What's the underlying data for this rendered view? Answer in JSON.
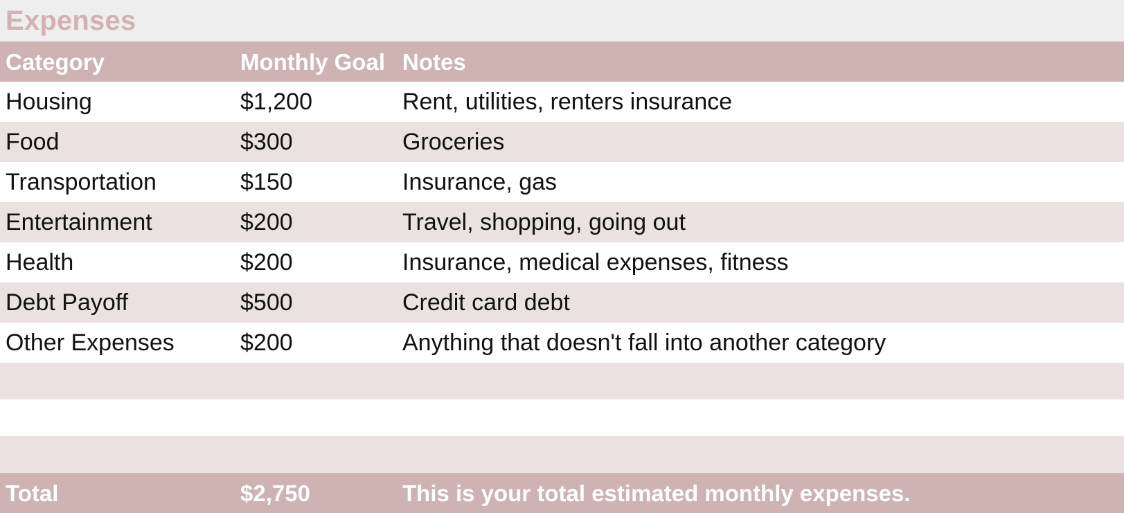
{
  "title": "Expenses",
  "headers": {
    "category": "Category",
    "goal": "Monthly Goal",
    "notes": "Notes"
  },
  "rows": [
    {
      "category": "Housing",
      "goal": "$1,200",
      "notes": "Rent, utilities, renters insurance"
    },
    {
      "category": "Food",
      "goal": "$300",
      "notes": "Groceries"
    },
    {
      "category": "Transportation",
      "goal": "$150",
      "notes": "Insurance, gas"
    },
    {
      "category": "Entertainment",
      "goal": "$200",
      "notes": "Travel, shopping, going out"
    },
    {
      "category": "Health",
      "goal": "$200",
      "notes": "Insurance, medical expenses, fitness"
    },
    {
      "category": "Debt Payoff",
      "goal": "$500",
      "notes": "Credit card debt"
    },
    {
      "category": "Other Expenses",
      "goal": "$200",
      "notes": "Anything that doesn't fall into another category"
    }
  ],
  "total": {
    "label": "Total",
    "goal": "$2,750",
    "notes": "This is your total estimated monthly expenses."
  },
  "colors": {
    "accent": "#cfb2b2",
    "title": "#d2b1b2",
    "stripe": "#ece1e1",
    "background": "#efeeef"
  }
}
